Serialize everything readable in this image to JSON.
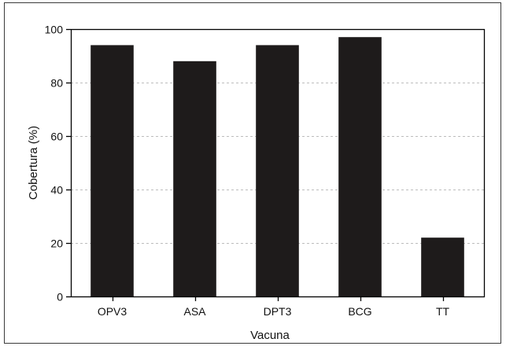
{
  "chart_data": {
    "type": "bar",
    "title": "",
    "xlabel": "Vacuna",
    "ylabel": "Cobertura (%)",
    "categories": [
      "OPV3",
      "ASA",
      "DPT3",
      "BCG",
      "TT"
    ],
    "values": [
      94,
      88,
      94,
      97,
      22
    ],
    "ylim": [
      0,
      100
    ],
    "yticks": [
      "0",
      "20",
      "40",
      "60",
      "80",
      "100"
    ],
    "grid": true,
    "legend": "none",
    "colors": {
      "bar": "#1e1b1b",
      "grid": "#bdbdbd",
      "frame": "#3a3a3a"
    }
  }
}
